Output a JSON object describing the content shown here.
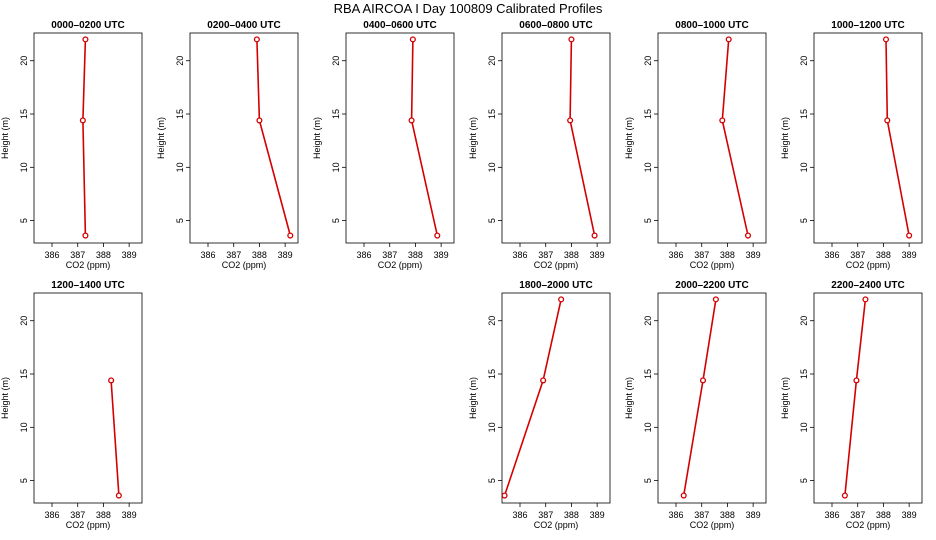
{
  "title": "RBA AIRCOA I  Day 100809  Calibrated Profiles",
  "colors": {
    "series": "#d40000",
    "axis": "#000000"
  },
  "chart_data": [
    {
      "type": "line",
      "title": "0000–0200 UTC",
      "xlabel": "CO2 (ppm)",
      "ylabel": "Height (m)",
      "xlim": [
        385.3,
        389.5
      ],
      "ylim": [
        2.9,
        22.6
      ],
      "xticks": [
        386,
        387,
        388,
        389
      ],
      "yticks": [
        5,
        10,
        15,
        20
      ],
      "x": [
        387.3,
        387.2,
        387.3
      ],
      "y": [
        22,
        14.4,
        3.6
      ]
    },
    {
      "type": "line",
      "title": "0200–0400 UTC",
      "xlabel": "CO2 (ppm)",
      "ylabel": "Height (m)",
      "xlim": [
        385.3,
        389.5
      ],
      "ylim": [
        2.9,
        22.6
      ],
      "xticks": [
        386,
        387,
        388,
        389
      ],
      "yticks": [
        5,
        10,
        15,
        20
      ],
      "x": [
        387.9,
        388.0,
        389.2
      ],
      "y": [
        22,
        14.4,
        3.6
      ]
    },
    {
      "type": "line",
      "title": "0400–0600 UTC",
      "xlabel": "CO2 (ppm)",
      "ylabel": "Height (m)",
      "xlim": [
        385.3,
        389.5
      ],
      "ylim": [
        2.9,
        22.6
      ],
      "xticks": [
        386,
        387,
        388,
        389
      ],
      "yticks": [
        5,
        10,
        15,
        20
      ],
      "x": [
        387.9,
        387.85,
        388.85
      ],
      "y": [
        22,
        14.4,
        3.6
      ]
    },
    {
      "type": "line",
      "title": "0600–0800 UTC",
      "xlabel": "CO2 (ppm)",
      "ylabel": "Height (m)",
      "xlim": [
        385.3,
        389.5
      ],
      "ylim": [
        2.9,
        22.6
      ],
      "xticks": [
        386,
        387,
        388,
        389
      ],
      "yticks": [
        5,
        10,
        15,
        20
      ],
      "x": [
        388.0,
        387.95,
        388.9
      ],
      "y": [
        22,
        14.4,
        3.6
      ]
    },
    {
      "type": "line",
      "title": "0800–1000 UTC",
      "xlabel": "CO2 (ppm)",
      "ylabel": "Height (m)",
      "xlim": [
        385.3,
        389.5
      ],
      "ylim": [
        2.9,
        22.6
      ],
      "xticks": [
        386,
        387,
        388,
        389
      ],
      "yticks": [
        5,
        10,
        15,
        20
      ],
      "x": [
        388.05,
        387.8,
        388.8
      ],
      "y": [
        22,
        14.4,
        3.6
      ]
    },
    {
      "type": "line",
      "title": "1000–1200 UTC",
      "xlabel": "CO2 (ppm)",
      "ylabel": "Height (m)",
      "xlim": [
        385.3,
        389.5
      ],
      "ylim": [
        2.9,
        22.6
      ],
      "xticks": [
        386,
        387,
        388,
        389
      ],
      "yticks": [
        5,
        10,
        15,
        20
      ],
      "x": [
        388.1,
        388.15,
        389.0
      ],
      "y": [
        22,
        14.4,
        3.6
      ]
    },
    {
      "type": "line",
      "title": "1200–1400 UTC",
      "xlabel": "CO2 (ppm)",
      "ylabel": "Height (m)",
      "xlim": [
        385.3,
        389.5
      ],
      "ylim": [
        2.9,
        22.6
      ],
      "xticks": [
        386,
        387,
        388,
        389
      ],
      "yticks": [
        5,
        10,
        15,
        20
      ],
      "x": [
        388.3,
        388.6
      ],
      "y": [
        14.4,
        3.6
      ]
    },
    {
      "type": "line",
      "title": "1800–2000 UTC",
      "xlabel": "CO2 (ppm)",
      "ylabel": "Height (m)",
      "xlim": [
        385.3,
        389.5
      ],
      "ylim": [
        2.9,
        22.6
      ],
      "xticks": [
        386,
        387,
        388,
        389
      ],
      "yticks": [
        5,
        10,
        15,
        20
      ],
      "x": [
        387.6,
        386.9,
        385.4
      ],
      "y": [
        22,
        14.4,
        3.6
      ]
    },
    {
      "type": "line",
      "title": "2000–2200 UTC",
      "xlabel": "CO2 (ppm)",
      "ylabel": "Height (m)",
      "xlim": [
        385.3,
        389.5
      ],
      "ylim": [
        2.9,
        22.6
      ],
      "xticks": [
        386,
        387,
        388,
        389
      ],
      "yticks": [
        5,
        10,
        15,
        20
      ],
      "x": [
        387.55,
        387.05,
        386.3
      ],
      "y": [
        22,
        14.4,
        3.6
      ]
    },
    {
      "type": "line",
      "title": "2200–2400 UTC",
      "xlabel": "CO2 (ppm)",
      "ylabel": "Height (m)",
      "xlim": [
        385.3,
        389.5
      ],
      "ylim": [
        2.9,
        22.6
      ],
      "xticks": [
        386,
        387,
        388,
        389
      ],
      "yticks": [
        5,
        10,
        15,
        20
      ],
      "x": [
        387.3,
        386.95,
        386.5
      ],
      "y": [
        22,
        14.4,
        3.6
      ]
    }
  ]
}
